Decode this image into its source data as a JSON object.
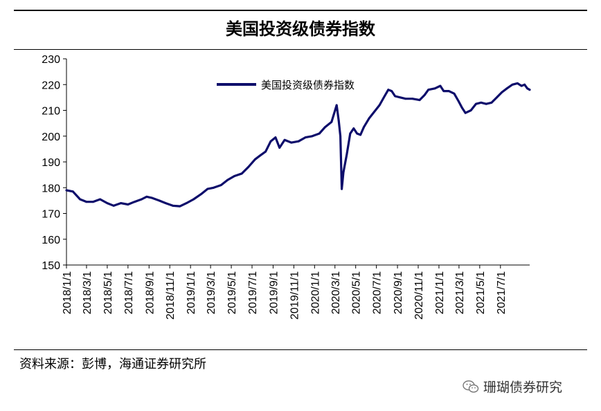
{
  "title": "美国投资级债券指数",
  "source": "资料来源：彭博，海通证券研究所",
  "watermark": "珊瑚债券研究",
  "watermark_icon": "wechat-icon",
  "colors": {
    "series": "#0d0d6b",
    "axis": "#000000"
  },
  "chart_data": {
    "type": "line",
    "title": "美国投资级债券指数",
    "ylim": [
      150,
      230
    ],
    "yticks": [
      150,
      160,
      170,
      180,
      190,
      200,
      210,
      220,
      230
    ],
    "xrange": [
      "2018-01-01",
      "2021-09-25"
    ],
    "xtick_labels": [
      "2018/1/1",
      "2018/3/1",
      "2018/5/1",
      "2018/7/1",
      "2018/9/1",
      "2018/11/1",
      "2019/1/1",
      "2019/3/1",
      "2019/5/1",
      "2019/7/1",
      "2019/9/1",
      "2019/11/1",
      "2020/1/1",
      "2020/3/1",
      "2020/5/1",
      "2020/7/1",
      "2020/9/1",
      "2020/11/1",
      "2021/1/1",
      "2021/3/1",
      "2021/5/1",
      "2021/7/1"
    ],
    "grid": false,
    "legend": "top-center",
    "series": [
      {
        "name": "美国投资级债券指数",
        "points": [
          [
            "2018-01-01",
            179.0
          ],
          [
            "2018-01-20",
            178.5
          ],
          [
            "2018-02-10",
            175.5
          ],
          [
            "2018-03-01",
            174.5
          ],
          [
            "2018-03-20",
            174.5
          ],
          [
            "2018-04-10",
            175.5
          ],
          [
            "2018-05-01",
            174.0
          ],
          [
            "2018-05-20",
            173.0
          ],
          [
            "2018-06-10",
            174.0
          ],
          [
            "2018-07-01",
            173.5
          ],
          [
            "2018-07-20",
            174.5
          ],
          [
            "2018-08-10",
            175.5
          ],
          [
            "2018-08-25",
            176.5
          ],
          [
            "2018-09-10",
            176.0
          ],
          [
            "2018-10-01",
            175.0
          ],
          [
            "2018-10-20",
            174.0
          ],
          [
            "2018-11-10",
            173.0
          ],
          [
            "2018-12-01",
            172.8
          ],
          [
            "2018-12-20",
            174.0
          ],
          [
            "2019-01-10",
            175.5
          ],
          [
            "2019-02-01",
            177.5
          ],
          [
            "2019-02-20",
            179.5
          ],
          [
            "2019-03-10",
            180.0
          ],
          [
            "2019-04-01",
            181.0
          ],
          [
            "2019-04-20",
            183.0
          ],
          [
            "2019-05-10",
            184.5
          ],
          [
            "2019-06-01",
            185.5
          ],
          [
            "2019-06-20",
            188.0
          ],
          [
            "2019-07-10",
            191.0
          ],
          [
            "2019-07-25",
            192.5
          ],
          [
            "2019-08-10",
            194.0
          ],
          [
            "2019-08-25",
            198.0
          ],
          [
            "2019-09-08",
            199.5
          ],
          [
            "2019-09-20",
            195.5
          ],
          [
            "2019-10-05",
            198.5
          ],
          [
            "2019-10-25",
            197.5
          ],
          [
            "2019-11-15",
            198.0
          ],
          [
            "2019-12-05",
            199.5
          ],
          [
            "2019-12-25",
            200.0
          ],
          [
            "2020-01-15",
            201.0
          ],
          [
            "2020-02-01",
            203.5
          ],
          [
            "2020-02-20",
            205.5
          ],
          [
            "2020-03-06",
            212.0
          ],
          [
            "2020-03-12",
            206.0
          ],
          [
            "2020-03-17",
            200.0
          ],
          [
            "2020-03-21",
            179.5
          ],
          [
            "2020-03-26",
            186.0
          ],
          [
            "2020-04-05",
            193.0
          ],
          [
            "2020-04-15",
            201.0
          ],
          [
            "2020-04-25",
            203.0
          ],
          [
            "2020-05-05",
            201.0
          ],
          [
            "2020-05-15",
            200.5
          ],
          [
            "2020-05-25",
            203.5
          ],
          [
            "2020-06-10",
            207.0
          ],
          [
            "2020-06-25",
            209.5
          ],
          [
            "2020-07-10",
            212.0
          ],
          [
            "2020-07-25",
            215.5
          ],
          [
            "2020-08-05",
            218.0
          ],
          [
            "2020-08-15",
            217.5
          ],
          [
            "2020-08-25",
            215.5
          ],
          [
            "2020-09-10",
            215.0
          ],
          [
            "2020-09-25",
            214.5
          ],
          [
            "2020-10-15",
            214.5
          ],
          [
            "2020-11-05",
            214.0
          ],
          [
            "2020-11-20",
            216.0
          ],
          [
            "2020-12-01",
            218.0
          ],
          [
            "2020-12-20",
            218.5
          ],
          [
            "2021-01-05",
            219.5
          ],
          [
            "2021-01-15",
            217.5
          ],
          [
            "2021-01-30",
            217.5
          ],
          [
            "2021-02-15",
            216.5
          ],
          [
            "2021-02-28",
            213.5
          ],
          [
            "2021-03-10",
            211.0
          ],
          [
            "2021-03-20",
            209.0
          ],
          [
            "2021-04-05",
            210.0
          ],
          [
            "2021-04-20",
            212.5
          ],
          [
            "2021-05-05",
            213.0
          ],
          [
            "2021-05-20",
            212.5
          ],
          [
            "2021-06-05",
            213.0
          ],
          [
            "2021-06-20",
            215.0
          ],
          [
            "2021-07-05",
            217.0
          ],
          [
            "2021-07-20",
            218.5
          ],
          [
            "2021-08-05",
            220.0
          ],
          [
            "2021-08-20",
            220.5
          ],
          [
            "2021-09-01",
            219.5
          ],
          [
            "2021-09-10",
            220.0
          ],
          [
            "2021-09-18",
            218.5
          ],
          [
            "2021-09-25",
            218.0
          ]
        ]
      }
    ]
  }
}
